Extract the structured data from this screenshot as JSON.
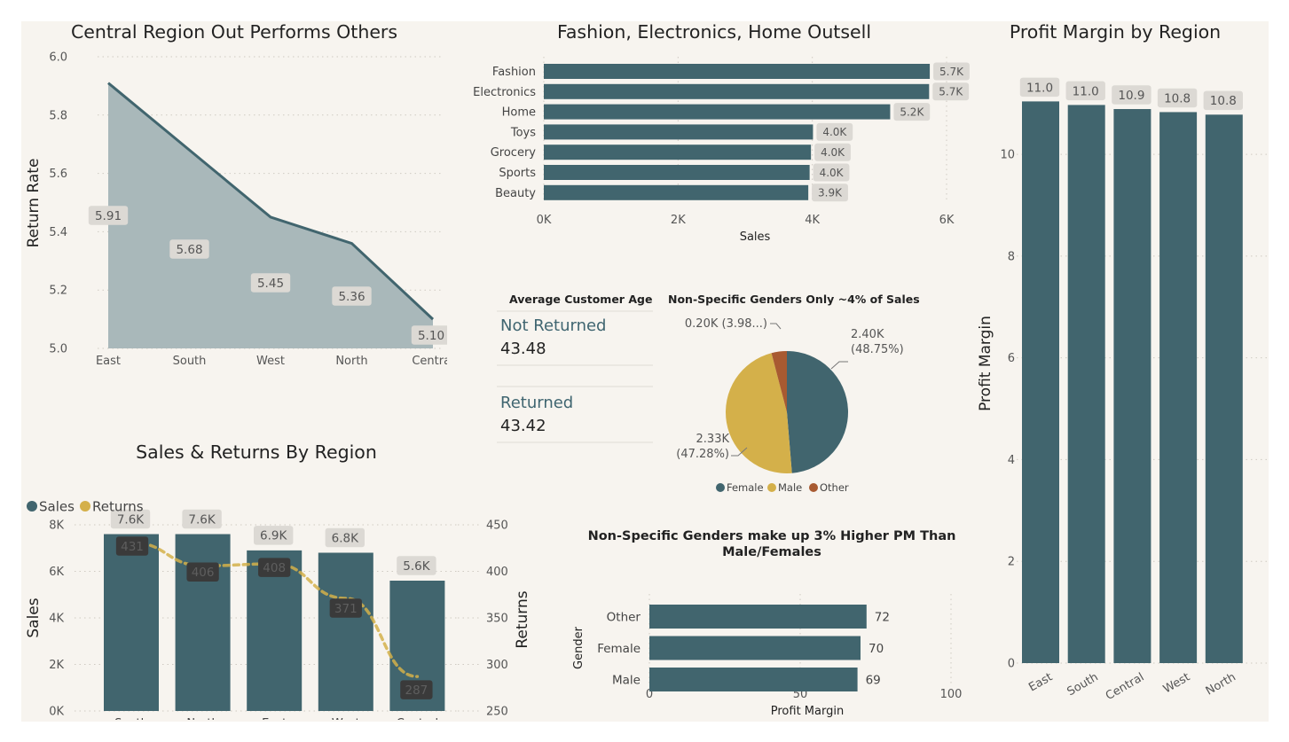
{
  "colors": {
    "primary": "#41656e",
    "accent": "#d4b04a",
    "other": "#a85a31",
    "background": "#f7f4ef",
    "label_box": "#dcd9d4",
    "dark_label_box": "#3a3a3a"
  },
  "chart_data": [
    {
      "id": "return_rate_by_region",
      "type": "area",
      "title": "Central Region Out Performs Others",
      "xlabel": "",
      "ylabel": "Return Rate",
      "categories": [
        "East",
        "South",
        "West",
        "North",
        "Central"
      ],
      "values": [
        5.91,
        5.68,
        5.45,
        5.36,
        5.1
      ],
      "data_labels": [
        "5.91",
        "5.68",
        "5.45",
        "5.36",
        "5.10"
      ],
      "ylim": [
        5.0,
        6.0
      ],
      "yticks": [
        5.0,
        5.2,
        5.4,
        5.6,
        5.8,
        6.0
      ],
      "ytick_labels": [
        "5.0",
        "5.2",
        "5.4",
        "5.6",
        "5.8",
        "6.0"
      ],
      "grid": true
    },
    {
      "id": "sales_by_category",
      "type": "bar",
      "orientation": "horizontal",
      "title": "Fashion, Electronics, Home Outsell",
      "xlabel": "Sales",
      "ylabel": "",
      "categories": [
        "Fashion",
        "Electronics",
        "Home",
        "Toys",
        "Grocery",
        "Sports",
        "Beauty"
      ],
      "values": [
        5750,
        5740,
        5160,
        4010,
        3980,
        3960,
        3940
      ],
      "data_labels": [
        "5.7K",
        "5.7K",
        "5.2K",
        "4.0K",
        "4.0K",
        "4.0K",
        "3.9K"
      ],
      "xlim": [
        0,
        6000
      ],
      "xticks": [
        0,
        2000,
        4000,
        6000
      ],
      "xtick_labels": [
        "0K",
        "2K",
        "4K",
        "6K"
      ],
      "grid": true
    },
    {
      "id": "sales_by_gender",
      "type": "pie",
      "title": "Non-Specific Genders Only ~4% of Sales",
      "categories": [
        "Female",
        "Male",
        "Other"
      ],
      "values": [
        2400,
        2330,
        200
      ],
      "percentages": [
        48.75,
        47.28,
        3.98
      ],
      "data_labels": [
        "2.40K\n(48.75%)",
        "2.33K\n(47.28%)",
        "0.20K (3.98...)"
      ],
      "legend": "bottom"
    },
    {
      "id": "sales_returns_by_region",
      "type": "bar",
      "title": "Sales & Returns By Region",
      "xlabel": "",
      "ylabel": "Sales",
      "y2label": "Returns",
      "categories": [
        "South",
        "North",
        "East",
        "West",
        "Central"
      ],
      "series": [
        {
          "name": "Sales",
          "type": "bar",
          "values": [
            7600,
            7600,
            6900,
            6800,
            5600
          ],
          "data_labels": [
            "7.6K",
            "7.6K",
            "6.9K",
            "6.8K",
            "5.6K"
          ]
        },
        {
          "name": "Returns",
          "type": "line",
          "axis": "right",
          "values": [
            431,
            406,
            408,
            371,
            287
          ],
          "data_labels": [
            "431",
            "406",
            "408",
            "371",
            "287"
          ]
        }
      ],
      "ylim": [
        0,
        8000
      ],
      "yticks": [
        0,
        2000,
        4000,
        6000,
        8000
      ],
      "ytick_labels": [
        "0K",
        "2K",
        "4K",
        "6K",
        "8K"
      ],
      "y2lim": [
        250,
        450
      ],
      "y2ticks": [
        250,
        300,
        350,
        400,
        450
      ],
      "y2tick_labels": [
        "250",
        "300",
        "350",
        "400",
        "450"
      ],
      "legend": "top-left",
      "grid": true
    },
    {
      "id": "profit_margin_by_gender",
      "type": "bar",
      "orientation": "horizontal",
      "title": "Non-Specific Genders make up 3% Higher PM Than\nMale/Females",
      "xlabel": "Profit Margin",
      "ylabel": "Gender",
      "categories": [
        "Other",
        "Female",
        "Male"
      ],
      "values": [
        72,
        70,
        69
      ],
      "data_labels": [
        "72",
        "70",
        "69"
      ],
      "xlim": [
        0,
        100
      ],
      "xticks": [
        0,
        50,
        100
      ],
      "xtick_labels": [
        "0",
        "50",
        "100"
      ],
      "grid": true
    },
    {
      "id": "profit_margin_by_region",
      "type": "bar",
      "title": "Profit Margin by Region",
      "xlabel": "",
      "ylabel": "Profit Margin",
      "categories": [
        "East",
        "South",
        "Central",
        "West",
        "North"
      ],
      "values": [
        11.04,
        10.97,
        10.89,
        10.83,
        10.78
      ],
      "data_labels": [
        "11.0",
        "11.0",
        "10.9",
        "10.8",
        "10.8"
      ],
      "ylim": [
        0,
        11.5
      ],
      "yticks": [
        0,
        2,
        4,
        6,
        8,
        10
      ],
      "ytick_labels": [
        "0",
        "2",
        "4",
        "6",
        "8",
        "10"
      ],
      "grid": true
    }
  ],
  "kpi": {
    "title": "Average Customer Age",
    "items": [
      {
        "label": "Not Returned",
        "value": "43.48"
      },
      {
        "label": "Returned",
        "value": "43.42"
      }
    ]
  }
}
